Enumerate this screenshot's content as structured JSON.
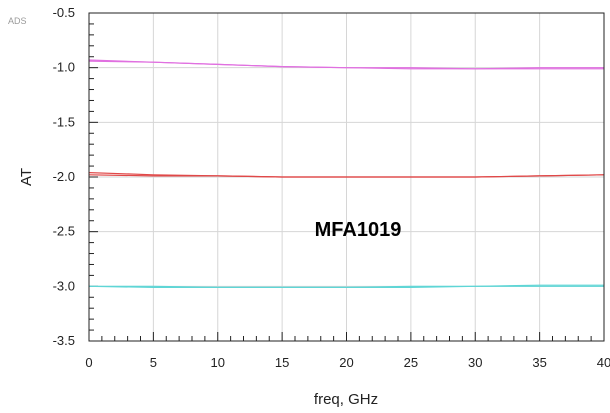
{
  "watermark": "ADS",
  "chart_data": {
    "type": "line",
    "title": "",
    "xlabel": "freq, GHz",
    "ylabel": "AT",
    "xlim": [
      0,
      40
    ],
    "ylim": [
      -3.5,
      -0.5
    ],
    "x_ticks": [
      "0",
      "5",
      "10",
      "15",
      "20",
      "25",
      "30",
      "35",
      "40"
    ],
    "y_ticks": [
      "-0.5",
      "-1.0",
      "-1.5",
      "-2.0",
      "-2.5",
      "-3.0",
      "-3.5"
    ],
    "grid": true,
    "annotation": "MFA1019",
    "series": [
      {
        "color": "#e070e0",
        "x": [
          0,
          2.5,
          5,
          10,
          15,
          20,
          25,
          30,
          35,
          40
        ],
        "y": [
          -0.93,
          -0.94,
          -0.95,
          -0.97,
          -0.99,
          -1.0,
          -1.01,
          -1.01,
          -1.01,
          -1.01
        ]
      },
      {
        "color": "#e070e0",
        "x": [
          0,
          5,
          10,
          15,
          20,
          25,
          30,
          35,
          40
        ],
        "y": [
          -0.94,
          -0.95,
          -0.97,
          -0.99,
          -1.0,
          -1.0,
          -1.01,
          -1.0,
          -1.0
        ]
      },
      {
        "color": "#e04848",
        "x": [
          0,
          2.5,
          5,
          10,
          15,
          20,
          25,
          30,
          35,
          40
        ],
        "y": [
          -1.96,
          -1.97,
          -1.98,
          -1.99,
          -2.0,
          -2.0,
          -2.0,
          -2.0,
          -1.99,
          -1.98
        ]
      },
      {
        "color": "#e04848",
        "x": [
          0,
          5,
          10,
          15,
          20,
          25,
          30,
          35,
          40
        ],
        "y": [
          -1.98,
          -1.99,
          -1.99,
          -2.0,
          -2.0,
          -2.0,
          -2.0,
          -1.99,
          -1.98
        ]
      },
      {
        "color": "#5fd6d6",
        "x": [
          0,
          5,
          10,
          15,
          20,
          25,
          30,
          35,
          40
        ],
        "y": [
          -3.0,
          -3.0,
          -3.01,
          -3.01,
          -3.01,
          -3.01,
          -3.0,
          -3.0,
          -3.0
        ]
      },
      {
        "color": "#5fd6d6",
        "x": [
          0,
          5,
          10,
          15,
          20,
          25,
          30,
          35,
          40
        ],
        "y": [
          -3.0,
          -3.01,
          -3.01,
          -3.01,
          -3.01,
          -3.0,
          -3.0,
          -2.99,
          -2.99
        ]
      }
    ]
  }
}
